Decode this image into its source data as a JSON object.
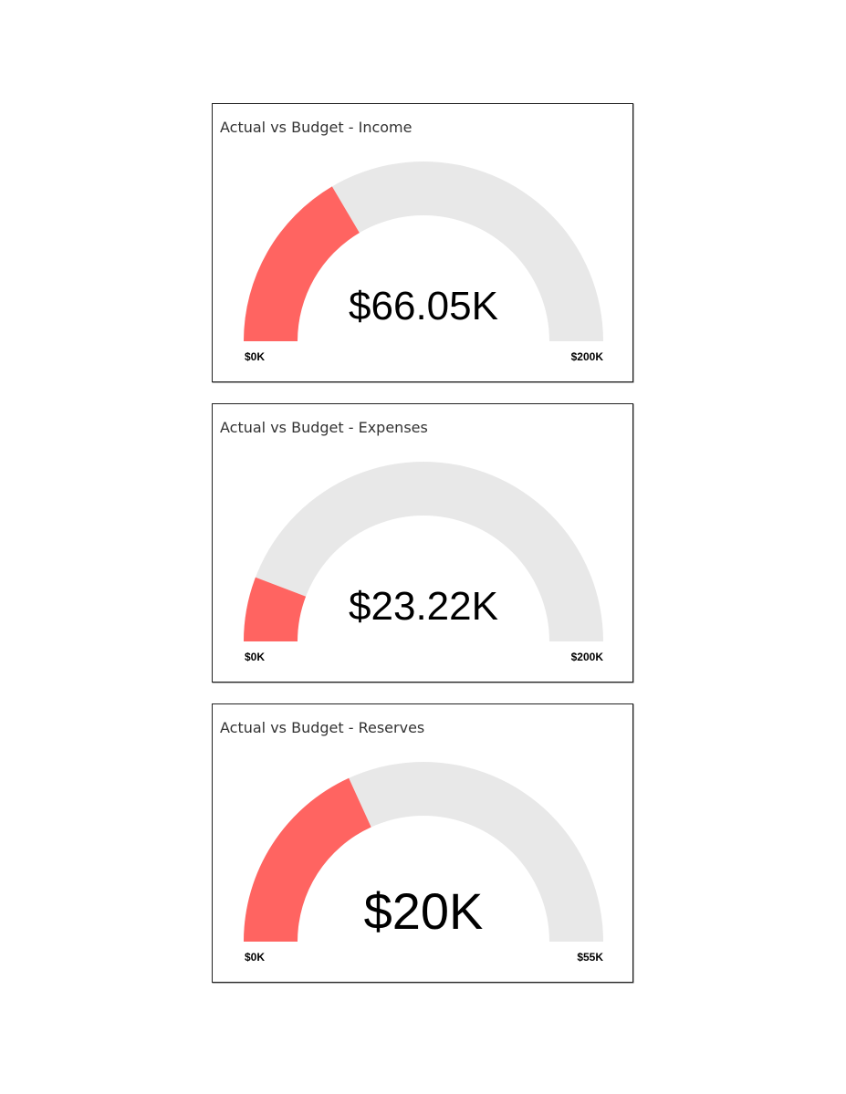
{
  "colors": {
    "value_arc": "#ff6461",
    "track_arc": "#e8e8e8",
    "value_text": "#000000",
    "axis_text": "#000000",
    "title_text": "#333333"
  },
  "gauges": [
    {
      "title": "Actual vs Budget - Income",
      "display_value": "$66.05K",
      "min_label": "$0K",
      "max_label": "$200K"
    },
    {
      "title": "Actual vs Budget - Expenses",
      "display_value": "$23.22K",
      "min_label": "$0K",
      "max_label": "$200K"
    },
    {
      "title": "Actual vs Budget - Reserves",
      "display_value": "$20K",
      "min_label": "$0K",
      "max_label": "$55K"
    }
  ],
  "chart_data": [
    {
      "type": "gauge",
      "title": "Actual vs Budget - Income",
      "value": 66.05,
      "min": 0,
      "max": 200,
      "unit": "$K",
      "value_label": "$66.05K",
      "min_label": "$0K",
      "max_label": "$200K"
    },
    {
      "type": "gauge",
      "title": "Actual vs Budget - Expenses",
      "value": 23.22,
      "min": 0,
      "max": 200,
      "unit": "$K",
      "value_label": "$23.22K",
      "min_label": "$0K",
      "max_label": "$200K"
    },
    {
      "type": "gauge",
      "title": "Actual vs Budget - Reserves",
      "value": 20,
      "min": 0,
      "max": 55,
      "unit": "$K",
      "value_label": "$20K",
      "min_label": "$0K",
      "max_label": "$55K"
    }
  ]
}
